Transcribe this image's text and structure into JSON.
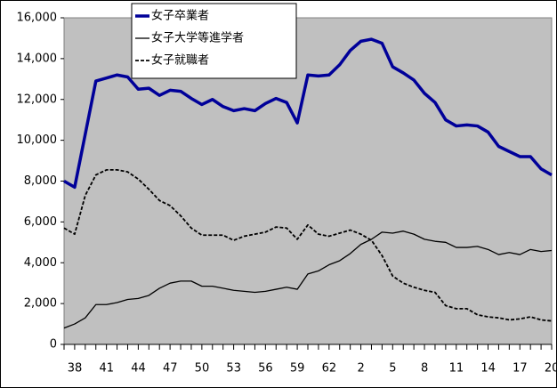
{
  "chart_data": {
    "type": "line",
    "categories": [
      "38",
      null,
      null,
      "41",
      null,
      null,
      "44",
      null,
      null,
      "47",
      null,
      null,
      "50",
      null,
      null,
      "53",
      null,
      null,
      "56",
      null,
      null,
      "59",
      null,
      null,
      "62",
      null,
      null,
      "2",
      null,
      null,
      "5",
      null,
      null,
      "8",
      null,
      null,
      "11",
      null,
      null,
      "14",
      null,
      null,
      "17",
      null,
      null,
      "20",
      null
    ],
    "series": [
      {
        "name": "女子卒業者",
        "color": "#000099",
        "style": "solid",
        "width": 3.5,
        "values": [
          8000,
          7700,
          10300,
          12900,
          13050,
          13200,
          13100,
          12500,
          12550,
          12200,
          12450,
          12400,
          12050,
          11750,
          12000,
          11650,
          11450,
          11550,
          11450,
          11800,
          12050,
          11850,
          10850,
          13200,
          13150,
          13200,
          13700,
          14400,
          14850,
          14950,
          14750,
          13600,
          13300,
          12950,
          12300,
          11850,
          11000,
          10700,
          10750,
          10700,
          10400,
          9700,
          9450,
          9200,
          9200,
          8600,
          8300
        ]
      },
      {
        "name": "女子大学等進学者",
        "color": "#000000",
        "style": "solid",
        "width": 1.3,
        "values": [
          800,
          1000,
          1300,
          1950,
          1950,
          2050,
          2200,
          2250,
          2400,
          2750,
          3000,
          3100,
          3100,
          2850,
          2850,
          2750,
          2650,
          2600,
          2550,
          2600,
          2700,
          2800,
          2700,
          3450,
          3600,
          3900,
          4100,
          4450,
          4900,
          5150,
          5500,
          5450,
          5550,
          5400,
          5150,
          5050,
          5000,
          4750,
          4750,
          4800,
          4650,
          4400,
          4500,
          4400,
          4650,
          4550,
          4600
        ]
      },
      {
        "name": "女子就職者",
        "color": "#000000",
        "style": "dashed",
        "width": 1.8,
        "values": [
          5700,
          5400,
          7300,
          8300,
          8550,
          8550,
          8450,
          8100,
          7600,
          7050,
          6800,
          6300,
          5700,
          5350,
          5350,
          5350,
          5100,
          5300,
          5400,
          5500,
          5750,
          5700,
          5150,
          5850,
          5400,
          5300,
          5450,
          5600,
          5400,
          5100,
          4350,
          3350,
          3000,
          2800,
          2650,
          2550,
          1900,
          1750,
          1750,
          1450,
          1350,
          1300,
          1200,
          1250,
          1350,
          1200,
          1150
        ]
      }
    ],
    "ylim": [
      0,
      16000
    ],
    "yticks": [
      0,
      {
        "value": 2000,
        "label": "2,000"
      },
      {
        "value": 4000,
        "label": "4,000"
      },
      {
        "value": 6000,
        "label": "6,000"
      },
      {
        "value": 8000,
        "label": "8,000"
      },
      {
        "value": 10000,
        "label": "10,000"
      },
      {
        "value": 12000,
        "label": "12,000"
      },
      {
        "value": 14000,
        "label": "14,000"
      },
      {
        "value": 16000,
        "label": "16,000"
      }
    ],
    "plot_background": "#c0c0c0",
    "legend": "top"
  }
}
